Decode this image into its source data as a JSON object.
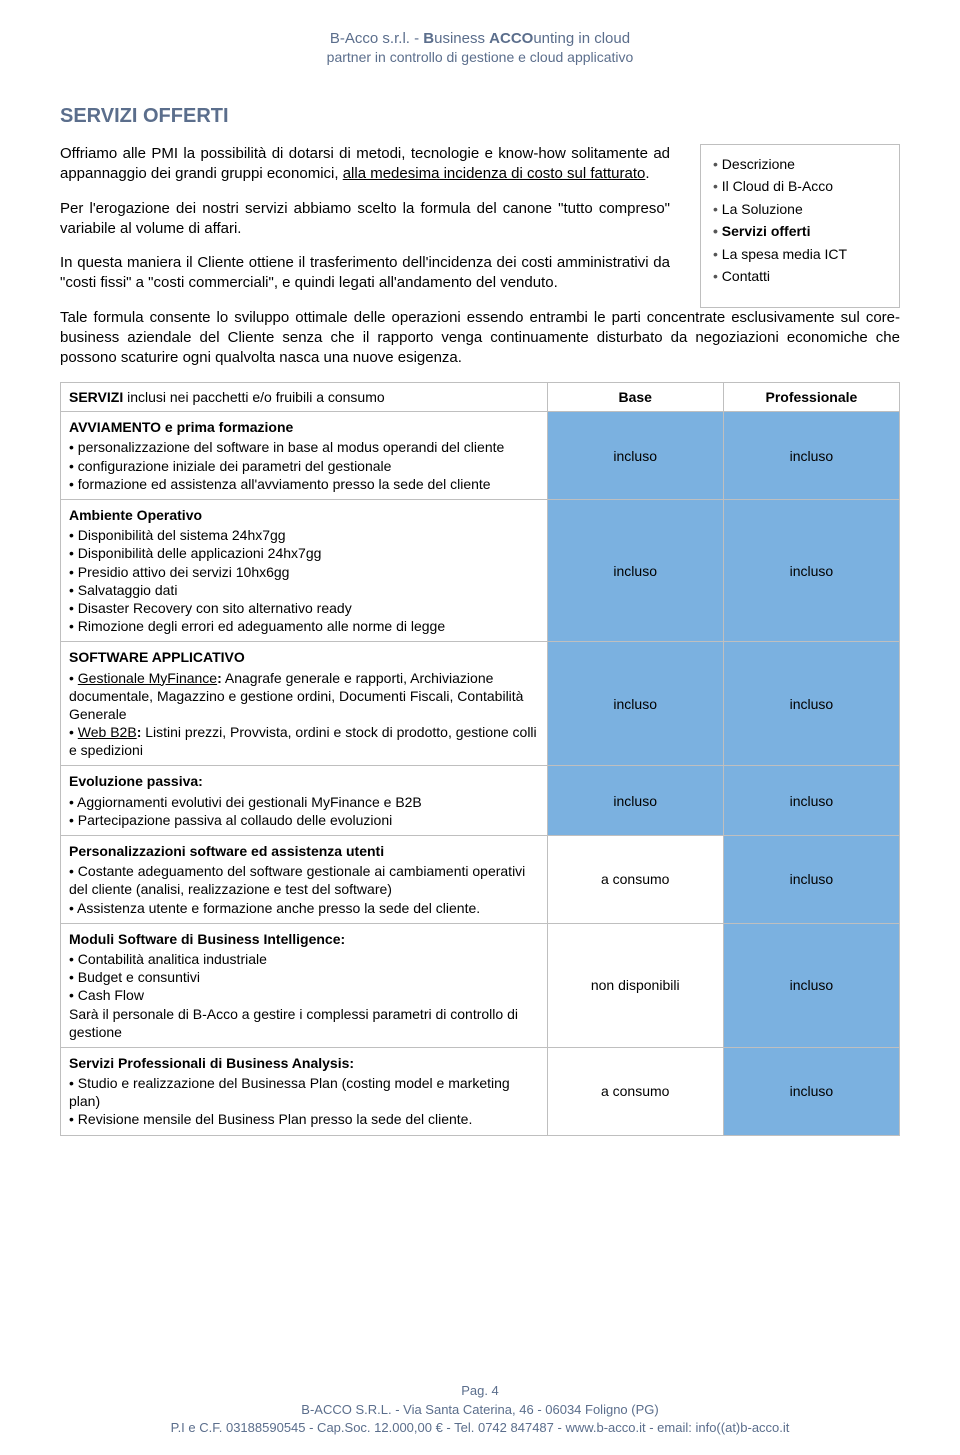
{
  "header": {
    "line1_pre": "B-Acco s.r.l. - ",
    "line1_b": "B",
    "line1_mid": "usiness ",
    "line1_acco": "ACCO",
    "line1_post": "unting in cloud",
    "line2": "partner in controllo di gestione e cloud applicativo"
  },
  "section_title": "SERVIZI OFFERTI",
  "paragraphs": {
    "p1_a": "Offriamo alle PMI la possibilità di dotarsi di metodi, tecnologie e know-how solitamente ad appannaggio dei grandi gruppi economici, ",
    "p1_u": "alla medesima incidenza di costo sul fatturato",
    "p1_b": ".",
    "p2": "Per l'erogazione dei nostri servizi abbiamo scelto la formula del canone \"tutto compreso\" variabile al volume di affari.",
    "p3": "In questa maniera il Cliente ottiene il trasferimento dell'incidenza dei costi amministrativi da \"costi fissi\" a \"costi commerciali\", e quindi legati all'andamento del venduto.",
    "p4": "Tale formula consente lo sviluppo ottimale delle operazioni essendo entrambi le parti concentrate esclusivamente sul core-business aziendale del Cliente senza che il rapporto venga continuamente disturbato da negoziazioni economiche che possono scaturire ogni qualvolta nasca una nuove esigenza."
  },
  "sidebar": {
    "items": [
      {
        "label": "Descrizione",
        "bold": false
      },
      {
        "label": "Il Cloud di B-Acco",
        "bold": false
      },
      {
        "label": "La Soluzione",
        "bold": false
      },
      {
        "label": "Servizi offerti",
        "bold": true
      },
      {
        "label": "La spesa media ICT",
        "bold": false
      },
      {
        "label": "Contatti",
        "bold": false
      }
    ]
  },
  "table": {
    "header_label_prefix": "SERVIZI",
    "header_label_rest": "   inclusi nei pacchetti e/o fruibili a consumo",
    "col_base": "Base",
    "col_prof": "Professionale",
    "rows": [
      {
        "title": "AVVIAMENTO e prima formazione",
        "items": [
          "personalizzazione del software in base al modus operandi del cliente",
          "configurazione iniziale dei parametri del gestionale",
          "formazione ed assistenza all'avviamento presso la sede del cliente"
        ],
        "base": "incluso",
        "base_blue": true,
        "prof": "incluso",
        "prof_blue": true
      },
      {
        "title": "Ambiente Operativo",
        "items": [
          "Disponibilità del sistema 24hx7gg",
          "Disponibilità delle applicazioni 24hx7gg",
          "Presidio attivo dei servizi 10hx6gg",
          "Salvataggio dati",
          "Disaster Recovery con sito alternativo ready",
          "Rimozione degli errori  ed adeguamento alle norme di legge"
        ],
        "base": "incluso",
        "base_blue": true,
        "prof": "incluso",
        "prof_blue": true
      },
      {
        "title": "SOFTWARE APPLICATIVO",
        "html_items": [
          "<span class='u'>Gestionale MyFinance</span><b>:</b> Anagrafe generale e rapporti,  Archiviazione documentale,  Magazzino e gestione ordini,  Documenti Fiscali, Contabilità Generale",
          "<span class='u'>Web B2B</span><b>:</b> Listini prezzi,  Provvista,  ordini e stock di prodotto,  gestione colli e spedizioni"
        ],
        "base": "incluso",
        "base_blue": true,
        "prof": "incluso",
        "prof_blue": true
      },
      {
        "title": "Evoluzione passiva:",
        "items": [
          "Aggiornamenti evolutivi dei gestionali  MyFinance e B2B",
          "Partecipazione passiva al collaudo delle evoluzioni"
        ],
        "base": "incluso",
        "base_blue": true,
        "prof": "incluso",
        "prof_blue": true
      },
      {
        "title": "Personalizzazioni software ed assistenza utenti",
        "items": [
          "Costante adeguamento del software gestionale ai cambiamenti operativi del cliente (analisi, realizzazione e test del software)",
          "Assistenza utente e formazione anche presso la sede del cliente."
        ],
        "base": "a consumo",
        "base_blue": false,
        "prof": "incluso",
        "prof_blue": true
      },
      {
        "title": "Moduli Software di Business Intelligence:",
        "items": [
          "Contabilità analitica industriale",
          "Budget e consuntivi",
          "Cash Flow"
        ],
        "trailer": "Sarà il personale di B-Acco a gestire i complessi parametri di controllo di gestione",
        "base": "non disponibili",
        "base_blue": false,
        "prof": "incluso",
        "prof_blue": true
      },
      {
        "title": "Servizi Professionali di Business Analysis:",
        "items": [
          "Studio e realizzazione del Businessa Plan (costing model e marketing plan)",
          "Revisione mensile del Business Plan presso la sede del cliente."
        ],
        "base": "a consumo",
        "base_blue": false,
        "prof": "incluso",
        "prof_blue": true
      }
    ]
  },
  "footer": {
    "page": "Pag. 4",
    "line2": "B-ACCO S.R.L. - Via Santa Caterina, 46  - 06034 Foligno (PG)",
    "line3": "P.I e C.F. 03188590545 - Cap.Soc. 12.000,00 € - Tel. 0742 847487  - www.b-acco.it - email: info((at)b-acco.it"
  },
  "colors": {
    "brand_text": "#5b6e8c",
    "table_border": "#bfbfbf",
    "cell_blue": "#7bb1e0",
    "background": "#ffffff"
  }
}
